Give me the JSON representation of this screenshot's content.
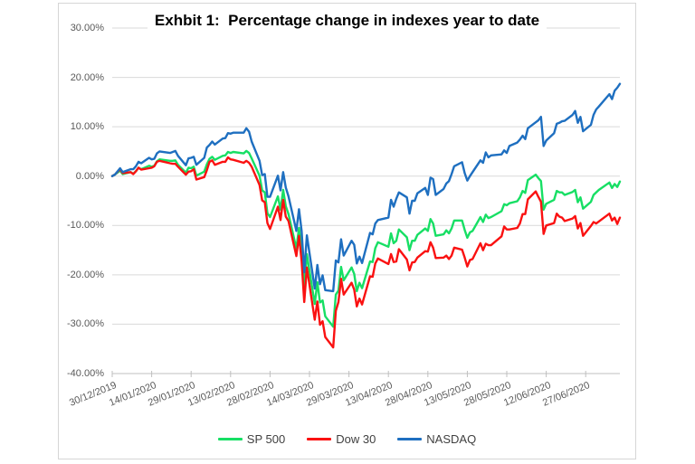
{
  "colors": {
    "background": "#ffffff",
    "frame_border": "#d6d6d6",
    "gridline": "#d9d9d9",
    "axis_line": "#bfbfbf",
    "tick_label": "#595959",
    "title_text": "#000000",
    "legend_text": "#3f3f3f"
  },
  "chart_data": {
    "type": "line",
    "title": "Exhbit 1:  Percentage change in indexes year to date",
    "grid": "horizontal",
    "legend_position": "bottom",
    "y_axis": {
      "tick_labels": [
        "30.00%",
        "20.00%",
        "10.00%",
        "0.00%",
        "-10.00%",
        "-20.00%",
        "-30.00%",
        "-40.00%"
      ],
      "tick_values": [
        30,
        20,
        10,
        0,
        -10,
        -20,
        -30,
        -40
      ],
      "max": 30,
      "min": -40,
      "unit": "percent change year to date"
    },
    "x_axis": {
      "tick_labels": [
        "30/12/2019",
        "14/01/2020",
        "29/01/2020",
        "13/02/2020",
        "28/02/2020",
        "14/03/2020",
        "29/03/2020",
        "13/04/2020",
        "28/04/2020",
        "13/05/2020",
        "28/05/2020",
        "12/06/2020",
        "27/06/2020"
      ],
      "tick_day_offsets": [
        0,
        15,
        30,
        45,
        60,
        75,
        90,
        105,
        120,
        135,
        150,
        165,
        180
      ],
      "total_days": 193,
      "unit": "calendar days since 30/12/2019 (trading days plotted)"
    },
    "x": [
      0,
      1,
      3,
      4,
      7,
      8,
      9,
      10,
      11,
      14,
      15,
      16,
      17,
      18,
      22,
      23,
      24,
      25,
      28,
      29,
      30,
      31,
      32,
      35,
      36,
      37,
      38,
      39,
      42,
      43,
      44,
      45,
      46,
      50,
      51,
      52,
      53,
      56,
      57,
      58,
      59,
      60,
      63,
      64,
      65,
      66,
      67,
      70,
      71,
      72,
      73,
      74,
      77,
      78,
      79,
      80,
      81,
      84,
      85,
      86,
      87,
      88,
      91,
      92,
      93,
      94,
      95,
      98,
      99,
      100,
      101,
      105,
      106,
      107,
      108,
      109,
      112,
      113,
      114,
      115,
      116,
      119,
      120,
      121,
      122,
      123,
      126,
      127,
      128,
      129,
      130,
      133,
      134,
      135,
      136,
      137,
      140,
      141,
      142,
      143,
      144,
      148,
      149,
      150,
      151,
      154,
      155,
      156,
      157,
      158,
      161,
      162,
      163,
      164,
      165,
      168,
      169,
      170,
      171,
      172,
      175,
      176,
      177,
      178,
      179,
      182,
      183,
      184,
      185,
      189,
      190,
      191,
      192,
      193
    ],
    "series": [
      {
        "name": "SP 500",
        "color": "#17df64",
        "values": [
          0,
          0.3,
          1.1,
          0.4,
          0.8,
          0.5,
          1.0,
          1.7,
          1.4,
          2.1,
          1.9,
          2.1,
          3.0,
          3.4,
          3.1,
          3.1,
          3.2,
          2.3,
          0.7,
          1.7,
          1.6,
          1.9,
          0.1,
          0.9,
          2.4,
          3.5,
          3.9,
          3.3,
          4.1,
          4.2,
          4.9,
          4.7,
          4.9,
          4.6,
          5.1,
          4.7,
          3.6,
          0.1,
          -2.9,
          -3.3,
          -7.5,
          -8.3,
          -4.1,
          -6.8,
          -2.8,
          -6.1,
          -7.7,
          -14.7,
          -10.5,
          -14.9,
          -23.0,
          -15.8,
          -25.9,
          -21.5,
          -25.6,
          -25.2,
          -28.4,
          -30.5,
          -24.0,
          -23.2,
          -18.4,
          -21.1,
          -18.5,
          -19.8,
          -23.3,
          -21.6,
          -22.7,
          -17.3,
          -17.4,
          -14.6,
          -13.4,
          -14.3,
          -11.6,
          -13.6,
          -13.1,
          -10.8,
          -12.4,
          -15.0,
          -13.1,
          -13.1,
          -11.9,
          -10.6,
          -11.1,
          -8.7,
          -9.6,
          -12.1,
          -11.8,
          -11.0,
          -11.6,
          -10.6,
          -9.0,
          -9.0,
          -10.9,
          -12.5,
          -11.4,
          -11.1,
          -8.3,
          -9.3,
          -7.8,
          -8.5,
          -8.3,
          -7.1,
          -5.7,
          -5.9,
          -5.5,
          -5.1,
          -4.3,
          -3.0,
          -3.4,
          -0.8,
          0.3,
          -0.4,
          -1.0,
          -6.8,
          -5.6,
          -4.8,
          -3.0,
          -3.3,
          -3.3,
          -3.8,
          -3.2,
          -2.8,
          -5.3,
          -4.3,
          -6.6,
          -5.2,
          -3.8,
          -3.3,
          -2.8,
          -1.3,
          -2.4,
          -1.6,
          -2.2,
          -1.1
        ]
      },
      {
        "name": "Dow 30",
        "color": "#fa1111",
        "values": [
          0,
          0.3,
          1.4,
          0.6,
          0.8,
          0.4,
          1.0,
          1.7,
          1.3,
          1.6,
          1.7,
          2.0,
          2.9,
          3.1,
          2.6,
          2.5,
          2.5,
          1.9,
          0.3,
          0.9,
          1.0,
          1.4,
          -0.7,
          -0.2,
          1.2,
          2.9,
          3.2,
          2.3,
          2.9,
          2.9,
          3.8,
          3.4,
          3.3,
          2.7,
          3.1,
          2.7,
          1.9,
          -1.8,
          -4.9,
          -5.3,
          -9.5,
          -10.7,
          -6.2,
          -8.9,
          -4.8,
          -8.2,
          -9.1,
          -16.2,
          -12.1,
          -17.2,
          -25.5,
          -18.5,
          -29.1,
          -25.4,
          -30.1,
          -29.4,
          -32.6,
          -34.7,
          -27.3,
          -25.5,
          -20.8,
          -24.0,
          -21.6,
          -23.0,
          -26.4,
          -24.8,
          -26.0,
          -20.3,
          -20.4,
          -17.7,
          -16.7,
          -17.8,
          -15.8,
          -17.4,
          -17.3,
          -14.8,
          -16.9,
          -19.1,
          -17.5,
          -17.4,
          -16.5,
          -15.2,
          -15.3,
          -13.4,
          -14.5,
          -16.6,
          -16.5,
          -16.1,
          -16.8,
          -16.1,
          -14.5,
          -14.9,
          -16.5,
          -18.3,
          -17.0,
          -16.8,
          -13.6,
          -15.0,
          -13.7,
          -14.0,
          -14.0,
          -12.2,
          -10.2,
          -10.8,
          -10.8,
          -10.5,
          -9.6,
          -7.7,
          -7.7,
          -4.7,
          -3.1,
          -4.2,
          -5.2,
          -11.7,
          -10.0,
          -9.5,
          -7.6,
          -8.2,
          -8.4,
          -9.1,
          -8.6,
          -8.1,
          -10.6,
          -9.5,
          -12.1,
          -10.1,
          -9.3,
          -9.6,
          -9.2,
          -7.6,
          -9.0,
          -8.4,
          -9.7,
          -8.4
        ]
      },
      {
        "name": "NASDAQ",
        "color": "#1e6fc0",
        "values": [
          0,
          0.3,
          1.6,
          0.8,
          1.4,
          1.4,
          2.0,
          2.9,
          2.6,
          3.7,
          3.4,
          3.5,
          4.6,
          5.0,
          4.7,
          4.9,
          5.1,
          4.1,
          2.2,
          3.6,
          3.7,
          3.9,
          2.3,
          3.7,
          5.8,
          6.3,
          7.0,
          6.4,
          7.6,
          7.7,
          8.7,
          8.6,
          8.8,
          8.8,
          9.7,
          9.0,
          7.0,
          3.1,
          0.2,
          0.4,
          -4.2,
          -4.2,
          0.1,
          -2.9,
          0.8,
          -2.3,
          -4.1,
          -11.1,
          -6.7,
          -11.1,
          -19.5,
          -12.0,
          -22.8,
          -18.0,
          -21.9,
          -20.1,
          -23.1,
          -23.3,
          -17.1,
          -17.5,
          -12.8,
          -16.1,
          -13.1,
          -13.9,
          -17.7,
          -16.3,
          -17.6,
          -11.5,
          -11.8,
          -9.6,
          -8.9,
          -8.4,
          -4.8,
          -6.2,
          -4.6,
          -3.3,
          -4.3,
          -7.6,
          -5.0,
          -5.0,
          -3.5,
          -2.4,
          -3.8,
          -0.3,
          -0.6,
          -3.8,
          -2.6,
          -1.5,
          -1.0,
          0.4,
          2.0,
          2.8,
          0.6,
          -0.9,
          0.0,
          0.8,
          3.2,
          2.7,
          4.8,
          3.8,
          4.2,
          4.4,
          5.2,
          4.7,
          6.1,
          6.8,
          7.4,
          8.2,
          7.5,
          9.7,
          10.9,
          11.3,
          12.0,
          6.1,
          7.2,
          8.7,
          10.6,
          10.8,
          11.1,
          11.2,
          12.4,
          13.2,
          10.8,
          12.0,
          9.1,
          10.4,
          12.4,
          13.5,
          14.1,
          16.6,
          15.6,
          17.3,
          17.9,
          18.7
        ]
      }
    ]
  }
}
